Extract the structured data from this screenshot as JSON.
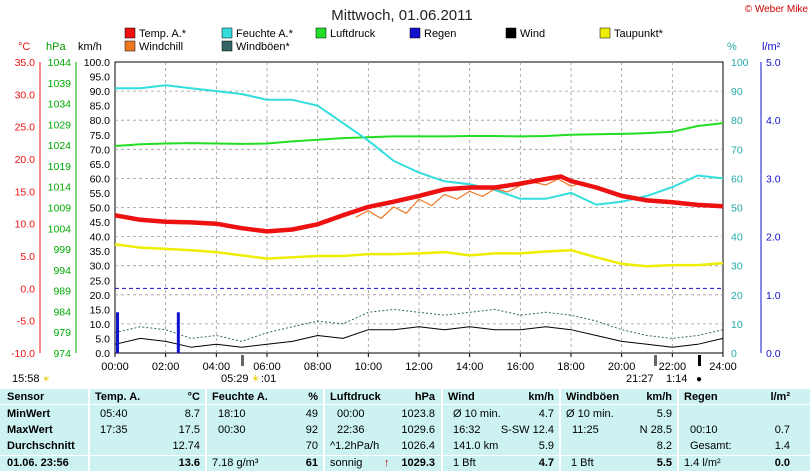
{
  "title": "Mittwoch, 01.06.2011",
  "copyright": "© Weber Mike",
  "axis_units": {
    "temp": "°C",
    "pressure": "hPa",
    "wind": "km/h",
    "humidity": "%",
    "rain": "l/m²"
  },
  "legend": [
    {
      "name": "Temp. A.*",
      "color": "#ee1111"
    },
    {
      "name": "Feuchte A.*",
      "color": "#33dddd"
    },
    {
      "name": "Luftdruck",
      "color": "#22dd22"
    },
    {
      "name": "Regen",
      "color": "#1111cc"
    },
    {
      "name": "Wind",
      "color": "#000000"
    },
    {
      "name": "Taupunkt*",
      "color": "#eeee00"
    },
    {
      "name": "Windchill",
      "color": "#ee7722"
    },
    {
      "name": "Windböen*",
      "color": "#336666"
    }
  ],
  "below_axis": {
    "sunrise": "05:29",
    "sun_icon_a": "☀",
    "sunrise_extra": ":01",
    "sunset": "21:27",
    "night_length": "1:14",
    "moon_icon": "●",
    "sun_icon_b": "☀",
    "start_label": "15:58"
  },
  "chart_data": {
    "type": "line",
    "x_range": [
      "00:00",
      "24:00"
    ],
    "x_ticks": [
      "00:00",
      "02:00",
      "04:00",
      "06:00",
      "08:00",
      "10:00",
      "12:00",
      "14:00",
      "16:00",
      "18:00",
      "20:00",
      "22:00",
      "24:00"
    ],
    "axes": {
      "temp": {
        "unit": "°C",
        "ylim": [
          -10,
          35
        ],
        "ticks": [
          "35.0",
          "30.0",
          "25.0",
          "20.0",
          "15.0",
          "10.0",
          "5.0",
          "0.0",
          "-5.0",
          "-10.0"
        ]
      },
      "pressure": {
        "unit": "hPa",
        "ylim": [
          974,
          1044
        ],
        "ticks": [
          "1044",
          "1039",
          "1034",
          "1029",
          "1024",
          "1019",
          "1014",
          "1009",
          "1004",
          "999",
          "994",
          "989",
          "984",
          "979",
          "974"
        ]
      },
      "wind": {
        "unit": "km/h",
        "ylim": [
          0,
          100
        ],
        "ticks": [
          "100.0",
          "95.0",
          "90.0",
          "85.0",
          "80.0",
          "75.0",
          "70.0",
          "65.0",
          "60.0",
          "55.0",
          "50.0",
          "45.0",
          "40.0",
          "35.0",
          "30.0",
          "25.0",
          "20.0",
          "15.0",
          "10.0",
          "5.0",
          "0.0"
        ]
      },
      "humidity": {
        "unit": "%",
        "ylim": [
          0,
          100
        ],
        "ticks": [
          "100",
          "90",
          "80",
          "70",
          "60",
          "50",
          "40",
          "30",
          "20",
          "10",
          "0"
        ]
      },
      "rain": {
        "unit": "l/m²",
        "ylim": [
          0,
          5
        ],
        "ticks": [
          "5.0",
          "4.0",
          "3.0",
          "2.0",
          "1.0",
          "0.0"
        ]
      }
    },
    "series": [
      {
        "name": "Temp. A.*",
        "axis": "temp",
        "color": "#ee1111",
        "x": [
          0,
          1,
          2,
          3,
          4,
          5,
          6,
          7,
          8,
          9,
          10,
          11,
          12,
          13,
          14,
          15,
          16,
          17,
          17.6,
          18,
          19,
          20,
          21,
          22,
          23,
          24
        ],
        "y": [
          11.3,
          10.6,
          10.3,
          10.2,
          10.0,
          9.3,
          8.8,
          9.1,
          9.9,
          11.3,
          12.6,
          13.4,
          14.3,
          15.3,
          15.6,
          15.6,
          16.2,
          16.9,
          17.3,
          16.6,
          15.6,
          14.3,
          13.6,
          13.3,
          12.9,
          12.7
        ]
      },
      {
        "name": "Windchill",
        "axis": "temp",
        "color": "#ee7722",
        "x": [
          9.5,
          10,
          10.5,
          11,
          11.5,
          12,
          12.5,
          13,
          13.5,
          14,
          14.5,
          15,
          15.5,
          16,
          16.5,
          17,
          17.5,
          18,
          18.5,
          19
        ],
        "y": [
          11.0,
          12.0,
          10.8,
          12.6,
          11.6,
          13.8,
          12.8,
          14.5,
          13.8,
          15.0,
          14.2,
          15.4,
          14.9,
          15.9,
          16.4,
          16.0,
          16.9,
          15.8,
          16.4,
          15.4
        ]
      },
      {
        "name": "Taupunkt*",
        "axis": "temp",
        "color": "#eeee00",
        "x": [
          0,
          1,
          2,
          3,
          4,
          5,
          6,
          7,
          8,
          9,
          10,
          11,
          12,
          13,
          14,
          15,
          16,
          17,
          18,
          19,
          20,
          21,
          22,
          23,
          24
        ],
        "y": [
          6.8,
          6.3,
          6.1,
          5.9,
          5.6,
          5.1,
          4.6,
          4.8,
          5.0,
          5.0,
          5.3,
          5.3,
          5.4,
          5.6,
          5.1,
          5.4,
          5.4,
          5.7,
          5.9,
          4.8,
          3.8,
          3.4,
          3.6,
          3.6,
          3.9
        ]
      },
      {
        "name": "Feuchte A.*",
        "axis": "humidity",
        "color": "#33dddd",
        "x": [
          0,
          1,
          2,
          3,
          4,
          5,
          6,
          7,
          8,
          9,
          10,
          11,
          12,
          13,
          14,
          15,
          16,
          17,
          18,
          19,
          20,
          21,
          22,
          23,
          24
        ],
        "y": [
          91,
          91,
          92,
          91,
          90,
          89,
          87,
          87,
          85,
          79,
          73,
          66,
          62,
          59,
          58,
          56,
          53,
          53,
          55,
          51,
          52,
          54,
          57,
          61,
          60
        ]
      },
      {
        "name": "Luftdruck",
        "axis": "pressure",
        "color": "#22dd22",
        "x": [
          0,
          1,
          2,
          3,
          4,
          5,
          6,
          7,
          8,
          9,
          10,
          11,
          12,
          13,
          14,
          15,
          16,
          17,
          18,
          19,
          20,
          21,
          22,
          23,
          24
        ],
        "y": [
          1023.8,
          1024.2,
          1024.4,
          1024.5,
          1024.4,
          1024.3,
          1024.4,
          1024.9,
          1025.3,
          1025.7,
          1025.9,
          1026.1,
          1026.1,
          1026.1,
          1026.2,
          1026.2,
          1026.1,
          1026.2,
          1026.5,
          1026.6,
          1026.7,
          1026.9,
          1027.2,
          1028.6,
          1029.3
        ]
      },
      {
        "name": "Wind",
        "axis": "wind",
        "color": "#000000",
        "x": [
          0,
          1,
          2,
          3,
          4,
          5,
          6,
          7,
          8,
          9,
          10,
          11,
          12,
          13,
          14,
          15,
          16,
          17,
          18,
          19,
          20,
          21,
          22,
          23,
          24
        ],
        "y": [
          3,
          5,
          4,
          2,
          3,
          2,
          3,
          4,
          6,
          5,
          8,
          8,
          9,
          8,
          9,
          8,
          8,
          9,
          8,
          6,
          4,
          3,
          2,
          3,
          5
        ]
      },
      {
        "name": "Windböen*",
        "axis": "wind",
        "color": "#336666",
        "x": [
          0,
          1,
          2,
          3,
          4,
          5,
          6,
          7,
          8,
          9,
          10,
          11,
          12,
          13,
          14,
          15,
          16,
          17,
          18,
          19,
          20,
          21,
          22,
          23,
          24
        ],
        "y": [
          7,
          9,
          8,
          5,
          6,
          4,
          7,
          9,
          11,
          10,
          14,
          15,
          14,
          13,
          14,
          15,
          13,
          14,
          13,
          11,
          8,
          6,
          5,
          6,
          8
        ]
      },
      {
        "name": "Regen",
        "axis": "rain",
        "color": "#1111cc",
        "type": "bar",
        "x": [
          0.1,
          2.5
        ],
        "y": [
          0.7,
          0.7
        ]
      }
    ]
  },
  "table": {
    "headers": {
      "sensor": "Sensor",
      "temp": "Temp. A.",
      "temp_unit": "°C",
      "hum": "Feuchte A.",
      "hum_unit": "%",
      "press": "Luftdruck",
      "press_unit": "hPa",
      "wind": "Wind",
      "wind_unit": "km/h",
      "gust": "Windböen",
      "gust_unit": "km/h",
      "rain": "Regen",
      "rain_unit": "l/m²"
    },
    "row_labels": {
      "min": "MinWert",
      "max": "MaxWert",
      "avg": "Durchschnitt",
      "now": "01.06.  23:56"
    },
    "temp": {
      "min_time": "05:40",
      "min": "8.7",
      "max_time": "17:35",
      "max": "17.5",
      "avg": "12.74",
      "now": "13.6"
    },
    "hum": {
      "min_time": "18:10",
      "min": "49",
      "max_time": "00:30",
      "max": "92",
      "avg": "70",
      "now_extra": "7.18 g/m³",
      "now": "61"
    },
    "press": {
      "min_time": "00:00",
      "min": "1023.8",
      "max_time": "22:36",
      "max": "1029.6",
      "avg_label": "^1.2hPa/h",
      "avg": "1026.4",
      "now_label": "sonnig",
      "now_arrow": "↑",
      "now": "1029.3"
    },
    "wind": {
      "min_label": "Ø 10 min.",
      "min": "4.7",
      "max_time": "16:32",
      "max_dir": "S-SW 12.4",
      "avg_label": "141.0 km",
      "avg": "5.9",
      "now_bft": "1 Bft",
      "now": "4.7"
    },
    "gust": {
      "min_label": "Ø 10 min.",
      "min": "5.9",
      "max_time": "11:25",
      "max_dir": "N 28.5",
      "avg": "8.2",
      "now_bft": "1 Bft",
      "now": "5.5"
    },
    "rain": {
      "min": "",
      "max_time": "00:10",
      "max": "0.7",
      "avg_label": "Gesamt:",
      "avg": "1.4",
      "now_label": "1.4 l/m²",
      "now": "0.0"
    }
  }
}
